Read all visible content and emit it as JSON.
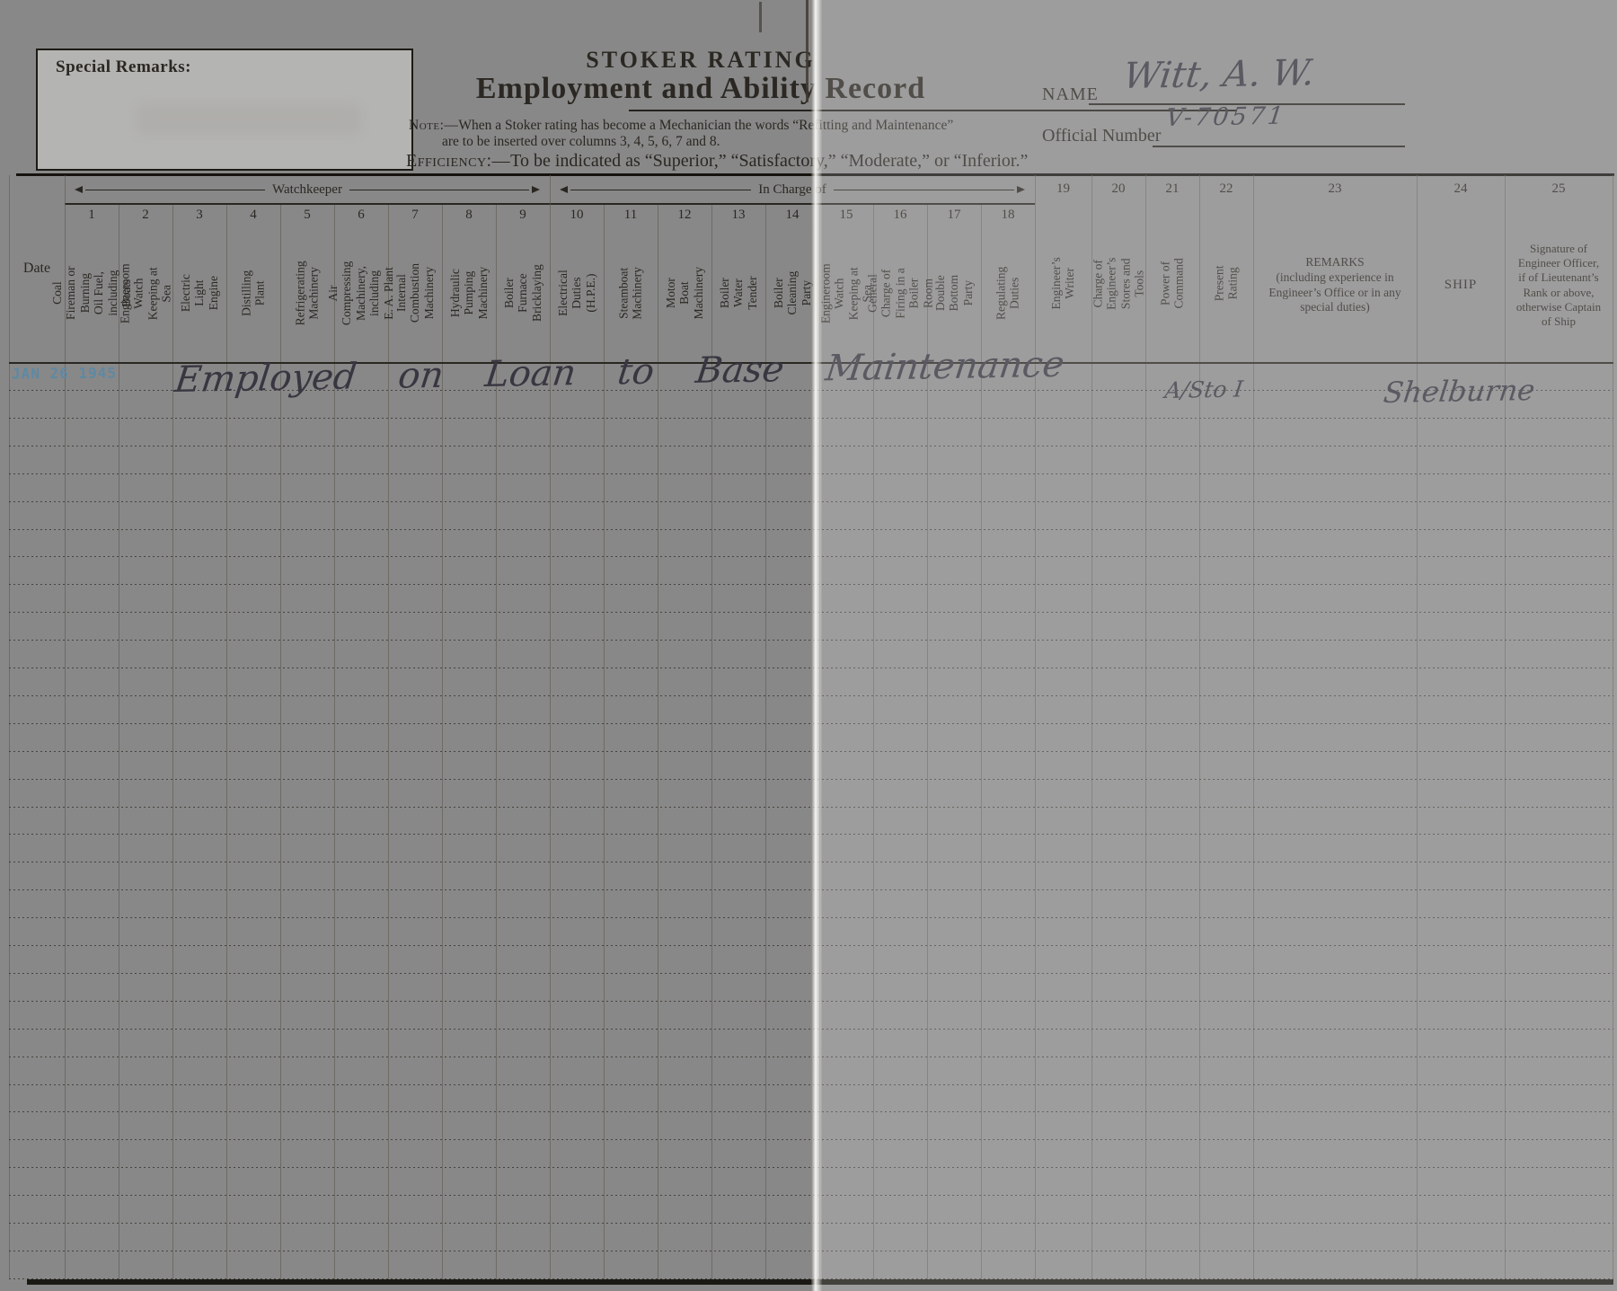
{
  "form": {
    "special_remarks_label": "Special Remarks:",
    "title_line1": "STOKER RATING",
    "title_line2": "Employment and Ability Record",
    "note_label": "Note:—",
    "note_text": "When a Stoker rating has become a Mechanician the words “Refitting and Maintenance”",
    "note_text2": "are to be inserted over columns 3, 4, 5, 6, 7 and 8.",
    "efficiency_label": "Efficiency:—",
    "efficiency_text": "To be indicated as “Superior,” “Satisfactory,” “Moderate,” or “Inferior.”",
    "name_label": "NAME",
    "name_value": "Witt, A. W.",
    "official_number_label": "Official Number",
    "official_number_value": "V-70571"
  },
  "table": {
    "date_header": "Date",
    "group_headers": [
      {
        "label": "Watchkeeper",
        "spans_columns": "1–9"
      },
      {
        "label": "In Charge of",
        "spans_columns": "10–18"
      }
    ],
    "columns": [
      {
        "num": "1",
        "label": "Coal Fireman or\nBurning Oil Fuel,\nincluding Boats"
      },
      {
        "num": "2",
        "label": "Engineroom Watch\nKeeping at Sea"
      },
      {
        "num": "3",
        "label": "Electric Light Engine"
      },
      {
        "num": "4",
        "label": "Distilling Plant"
      },
      {
        "num": "5",
        "label": "Refrigerating\nMachinery"
      },
      {
        "num": "6",
        "label": "Air Compressing\nMachinery, including\nE. A. Plant"
      },
      {
        "num": "7",
        "label": "Internal Combustion\nMachinery"
      },
      {
        "num": "8",
        "label": "Hydraulic Pumping\nMachinery"
      },
      {
        "num": "9",
        "label": "Boiler Furnace\nBricklaying"
      },
      {
        "num": "10",
        "label": "Electrical Duties\n(H.P.E.)"
      },
      {
        "num": "11",
        "label": "Steamboat Machinery"
      },
      {
        "num": "12",
        "label": "Motor Boat Machinery"
      },
      {
        "num": "13",
        "label": "Boiler Water Tender"
      },
      {
        "num": "14",
        "label": "Boiler Cleaning Party"
      },
      {
        "num": "15",
        "label": "Engineroom Watch\nKeeping at Sea"
      },
      {
        "num": "16",
        "label": "General Charge of\nFiring in a Boiler\nRoom"
      },
      {
        "num": "17",
        "label": "Double Bottom Party"
      },
      {
        "num": "18",
        "label": "Regulating Duties"
      },
      {
        "num": "19",
        "label": "Engineer’s Writer"
      },
      {
        "num": "20",
        "label": "Charge of Engineer’s\nStores and Tools"
      },
      {
        "num": "21",
        "label": "Power of Command"
      },
      {
        "num": "22",
        "label": "Present Rating"
      },
      {
        "num": "23",
        "label": "REMARKS\n(including experience in\nEngineer’s Office or in any\nspecial duties)"
      },
      {
        "num": "24",
        "label": "SHIP"
      },
      {
        "num": "25",
        "label": "Signature of\nEngineer Officer,\nif of Lieutenant’s\nRank or above,\notherwise Captain\nof Ship"
      }
    ],
    "entries": [
      {
        "date_stamp": "JAN 26 1945",
        "remark": "Employed on Loan to Base Maintenance",
        "power_of_command_rating": "A/Sto I",
        "ship": "Shelburne"
      }
    ]
  },
  "colors": {
    "stamp_blue": "#5d89a4",
    "handwriting_ink": "#383640",
    "print_black": "#2b2722",
    "paper": "#f2f0ea"
  }
}
